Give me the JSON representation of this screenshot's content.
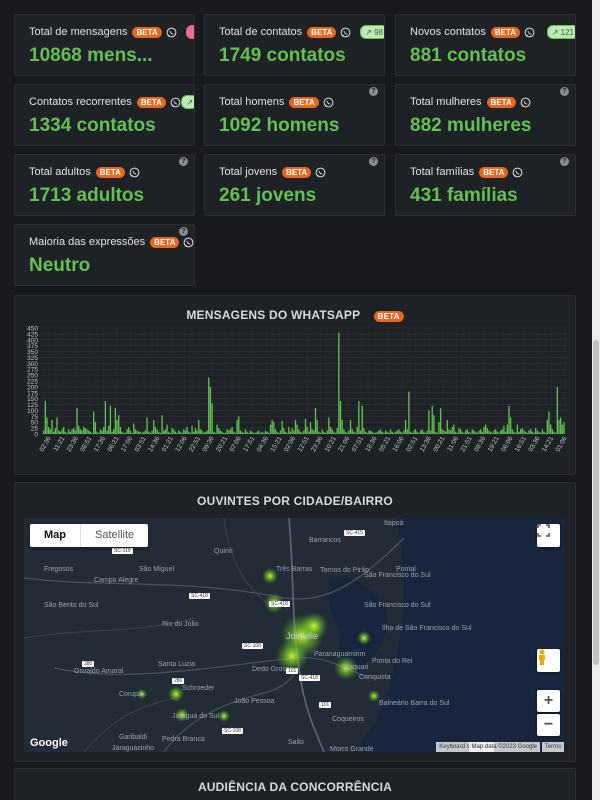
{
  "cards": [
    {
      "label": "Total de mensagens",
      "value": "10868 mens...",
      "beta": "BETA",
      "trend": "",
      "trend_color": "red"
    },
    {
      "label": "Total de contatos",
      "value": "1749 contatos",
      "beta": "BETA",
      "trend": "98",
      "trend_color": "green"
    },
    {
      "label": "Novos contatos",
      "value": "881 contatos",
      "beta": "BETA",
      "trend": "121",
      "trend_color": "green"
    },
    {
      "label": "Contatos recorrentes",
      "value": "1334 contatos",
      "beta": "BETA",
      "trend": "",
      "trend_color": "green"
    },
    {
      "label": "Total homens",
      "value": "1092 homens",
      "beta": "BETA"
    },
    {
      "label": "Total mulheres",
      "value": "882 mulheres",
      "beta": "BETA"
    },
    {
      "label": "Total adultos",
      "value": "1713 adultos",
      "beta": "BETA"
    },
    {
      "label": "Total jovens",
      "value": "261 jovens",
      "beta": "BETA"
    },
    {
      "label": "Total famílias",
      "value": "431 famílias",
      "beta": "BETA"
    },
    {
      "label": "Maioria das expressões",
      "value": "Neutro",
      "beta": "BETA"
    }
  ],
  "help_glyph": "?",
  "chart_panel": {
    "title": "MENSAGENS DO WHATSAPP",
    "beta": "BETA"
  },
  "chart_data": {
    "type": "bar",
    "title": "MENSAGENS DO WHATSAPP",
    "ylim": [
      0,
      450
    ],
    "yticks": [
      0,
      25,
      50,
      75,
      100,
      125,
      150,
      175,
      200,
      225,
      250,
      275,
      300,
      325,
      350,
      375,
      400,
      425,
      450
    ],
    "xtick_labels": [
      "02:36",
      "11:21",
      "23:36",
      "08:51",
      "17:36",
      "06:21",
      "17:06",
      "03:51",
      "14:36",
      "01:21",
      "12:06",
      "22:51",
      "09:36",
      "20:21",
      "07:06",
      "17:51",
      "04:36",
      "15:21",
      "02:06",
      "12:51",
      "23:36",
      "10:21",
      "21:06",
      "07:51",
      "18:36",
      "05:21",
      "16:06",
      "02:51",
      "13:36",
      "00:21",
      "11:06",
      "21:51",
      "08:36",
      "19:21",
      "06:06",
      "16:51",
      "03:36",
      "14:21",
      "01:06"
    ],
    "values": [
      15,
      140,
      70,
      30,
      20,
      60,
      10,
      25,
      70,
      15,
      10,
      20,
      30,
      10,
      5,
      20,
      10,
      20,
      25,
      15,
      110,
      35,
      20,
      15,
      30,
      25,
      20,
      15,
      10,
      5,
      95,
      50,
      10,
      5,
      20,
      15,
      30,
      140,
      15,
      35,
      120,
      10,
      20,
      110,
      60,
      80,
      30,
      10,
      5,
      5,
      20,
      30,
      15,
      5,
      45,
      20,
      15,
      10,
      10,
      5,
      10,
      15,
      70,
      10,
      5,
      15,
      60,
      30,
      20,
      10,
      5,
      80,
      15,
      20,
      40,
      10,
      5,
      25,
      20,
      10,
      5,
      15,
      10,
      5,
      20,
      15,
      30,
      10,
      5,
      35,
      10,
      25,
      15,
      60,
      20,
      15,
      5,
      10,
      15,
      240,
      200,
      130,
      10,
      5,
      40,
      25,
      15,
      10,
      5,
      5,
      20,
      15,
      20,
      30,
      10,
      5,
      60,
      75,
      15,
      10,
      5,
      20,
      10,
      5,
      15,
      10,
      5,
      5,
      10,
      15,
      5,
      10,
      5,
      15,
      10,
      5,
      40,
      60,
      50,
      20,
      10,
      5,
      15,
      55,
      25,
      10,
      5,
      30,
      10,
      25,
      15,
      60,
      40,
      20,
      10,
      5,
      15,
      65,
      30,
      10,
      50,
      20,
      15,
      110,
      60,
      10,
      5,
      20,
      10,
      5,
      15,
      70,
      30,
      20,
      10,
      5,
      25,
      430,
      140,
      60,
      20,
      10,
      5,
      15,
      60,
      20,
      10,
      5,
      30,
      140,
      15,
      120,
      25,
      10,
      5,
      15,
      15,
      10,
      5,
      5,
      10,
      15,
      20,
      10,
      5,
      15,
      10,
      5,
      20,
      10,
      5,
      10,
      15,
      20,
      10,
      5,
      15,
      60,
      20,
      180,
      10,
      5,
      15,
      20,
      10,
      5,
      15,
      20,
      10,
      5,
      15,
      100,
      15,
      120,
      80,
      10,
      5,
      50,
      110,
      20,
      15,
      10,
      60,
      20,
      15,
      30,
      40,
      10,
      5,
      25,
      20,
      10,
      5,
      15,
      20,
      10,
      5,
      20,
      15,
      10,
      5,
      15,
      20,
      10,
      30,
      40,
      25,
      15,
      10,
      5,
      15,
      20,
      10,
      5,
      15,
      20,
      35,
      10,
      40,
      120,
      70,
      20,
      10,
      5,
      40,
      10,
      20,
      25,
      15,
      10,
      5,
      15,
      20,
      10,
      5,
      25,
      15,
      10,
      5,
      20,
      10,
      5,
      60,
      95,
      40,
      20,
      10,
      5,
      200,
      60,
      70,
      40,
      50
    ]
  },
  "map_panel": {
    "title": "OUVINTES POR CIDADE/BAIRRO"
  },
  "map": {
    "tab_map": "Map",
    "tab_satellite": "Satellite",
    "logo": "Google",
    "attrib_shortcuts": "Keyboard shortcuts",
    "attrib_data": "Map data ©2023 Google",
    "attrib_terms": "Terms",
    "cities": [
      "Itapoá",
      "Barrancos",
      "Quiriri",
      "Fregosos",
      "São Miguel",
      "Três Barras",
      "Tornos do Pirão",
      "Pontal",
      "Campo Alegre",
      "São Francisco do Sul",
      "São Bento do Sul",
      "São Francisco do Sul",
      "Rio do Júlio",
      "Joinville",
      "Ilha de São Francisco do Sul",
      "Paranaguamirim",
      "Osvaldo Amaral",
      "Santa Luzia",
      "Dedo Grosso",
      "Araquari",
      "Ponta do Rei",
      "Conquista",
      "Corupá",
      "Schroeder",
      "João Pessoa",
      "Balneário Barra do Sul",
      "Jaraguá do Sul",
      "Coqueiros",
      "Garibaldi",
      "Pedra Branca",
      "Salto",
      "Morro Grande",
      "Jaraguazinho"
    ],
    "roads": [
      "SC-415",
      "SC-110",
      "SC-418",
      "SC-418",
      "SC-108",
      "101",
      "SC-418",
      "280",
      "280",
      "101",
      "SC-108"
    ]
  },
  "next_panel": {
    "title": "AUDIÊNCIA DA CONCORRÊNCIA"
  }
}
